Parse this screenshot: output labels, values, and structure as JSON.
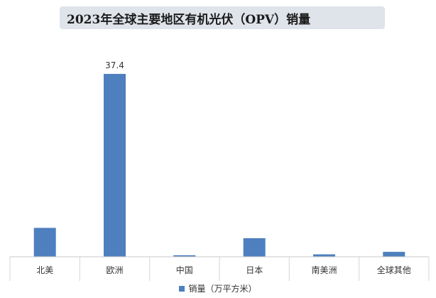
{
  "chart_data": {
    "type": "bar",
    "title": "2023年全球主要地区有机光伏（OPV）销量",
    "categories": [
      "北美",
      "欧洲",
      "中国",
      "日本",
      "南美洲",
      "全球其他"
    ],
    "series": [
      {
        "name": "销量（万平方米）",
        "values": [
          5.9,
          37.4,
          0.3,
          3.8,
          0.5,
          1.0
        ],
        "data_labels": [
          "",
          "37.4",
          "",
          "",
          "",
          ""
        ]
      }
    ],
    "ylim": [
      0,
      40
    ],
    "grid": false,
    "legend_position": "bottom",
    "bar_color": "#4e7fbe"
  }
}
